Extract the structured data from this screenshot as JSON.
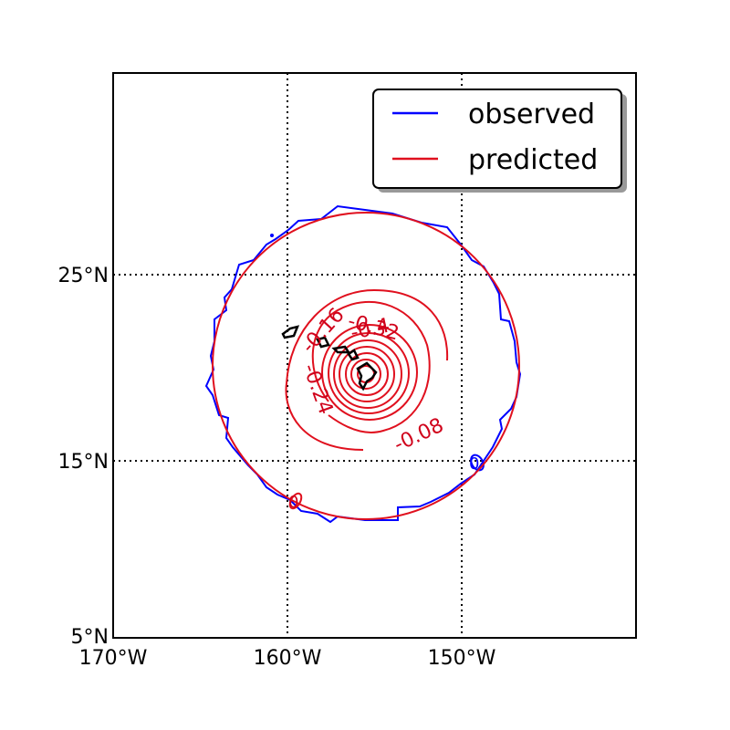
{
  "map": {
    "axes": {
      "lon_range": [
        -170,
        -140
      ],
      "lat_range": [
        5,
        35
      ],
      "x_ticks": [
        {
          "value": -170,
          "label": "170°W"
        },
        {
          "value": -160,
          "label": "160°W"
        },
        {
          "value": -150,
          "label": "150°W"
        }
      ],
      "y_ticks": [
        {
          "value": 5,
          "label": "5°N"
        },
        {
          "value": 15,
          "label": "15°N"
        },
        {
          "value": 25,
          "label": "25°N"
        }
      ],
      "grid": "dotted"
    },
    "legend": {
      "placement": "top-right",
      "entries": [
        {
          "label": "observed",
          "color": "#0000ff"
        },
        {
          "label": "predicted",
          "color": "#e0101e"
        }
      ]
    },
    "contour_labels": [
      {
        "text": "-0.16",
        "color": "#d0021b"
      },
      {
        "text": "-0.32",
        "color": "#d0021b"
      },
      {
        "text": "-0.4",
        "color": "#d0021b"
      },
      {
        "text": "-0.24",
        "color": "#d0021b"
      },
      {
        "text": "-0.08",
        "color": "#d0021b"
      },
      {
        "text": "0",
        "color": "#0000ff"
      },
      {
        "text": "0",
        "color": "#d0021b"
      }
    ],
    "colors": {
      "observed": "#0000ff",
      "predicted": "#e0101e",
      "coastline": "#000000"
    }
  }
}
